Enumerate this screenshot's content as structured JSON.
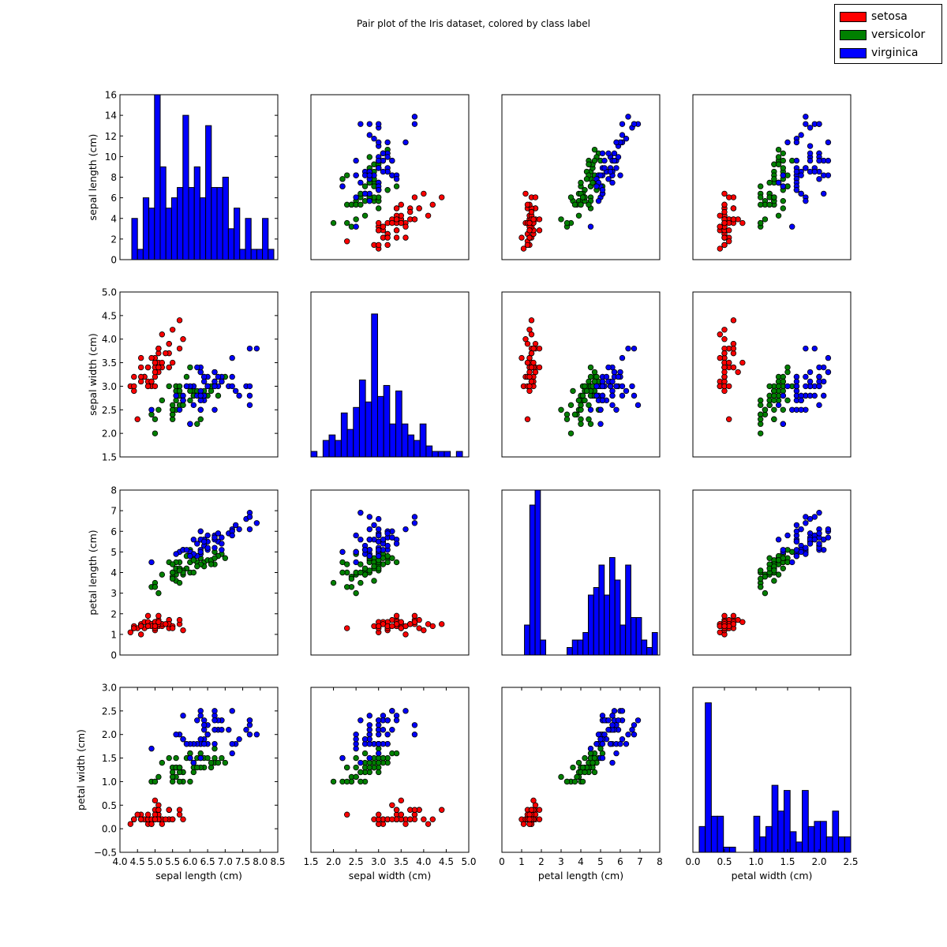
{
  "chart_data": {
    "type": "scatter",
    "title": "Pair plot of the Iris dataset, colored by class label",
    "legend_position": "top-right",
    "grid": false,
    "variables": [
      {
        "key": "sl",
        "label": "sepal length (cm)",
        "lim": [
          4.0,
          8.5
        ],
        "ticks": [
          "4.0",
          "4.5",
          "5.0",
          "5.5",
          "6.0",
          "6.5",
          "7.0",
          "7.5",
          "8.0",
          "8.5"
        ]
      },
      {
        "key": "sw",
        "label": "sepal width (cm)",
        "lim": [
          1.5,
          5.0
        ],
        "ticks": [
          "1.5",
          "2.0",
          "2.5",
          "3.0",
          "3.5",
          "4.0",
          "4.5",
          "5.0"
        ]
      },
      {
        "key": "pl",
        "label": "petal length (cm)",
        "lim": [
          0,
          8
        ],
        "ticks": [
          "0",
          "1",
          "2",
          "3",
          "4",
          "5",
          "6",
          "7",
          "8"
        ]
      },
      {
        "key": "pw",
        "label": "petal width (cm)",
        "lim": [
          -0.5,
          3.0
        ],
        "ticks": [
          "−0.5",
          "0.0",
          "0.5",
          "1.0",
          "1.5",
          "2.0",
          "2.5",
          "3.0"
        ]
      }
    ],
    "bottom_x_ticks": [
      [
        "4.0",
        "4.5",
        "5.0",
        "5.5",
        "6.0",
        "6.5",
        "7.0",
        "7.5",
        "8.0",
        "8.5"
      ],
      [
        "1.5",
        "2.0",
        "2.5",
        "3.0",
        "3.5",
        "4.0",
        "4.5",
        "5.0"
      ],
      [
        "0",
        "1",
        "2",
        "3",
        "4",
        "5",
        "6",
        "7",
        "8"
      ],
      [
        "0.0",
        "0.5",
        "1.0",
        "1.5",
        "2.0",
        "2.5"
      ]
    ],
    "bottom_x_lims": [
      [
        4.0,
        8.5
      ],
      [
        1.5,
        5.0
      ],
      [
        0,
        8
      ],
      [
        0,
        2.5
      ]
    ],
    "first_row_y_ticks": [
      "0",
      "2",
      "4",
      "6",
      "8",
      "10",
      "12",
      "14",
      "16"
    ],
    "first_row_y_lim": [
      0,
      16
    ],
    "first_row_scatter_y_lim": [
      4.0,
      8.5
    ],
    "histogram": {
      "bins": 25,
      "color": "#0000ff",
      "x_lims": [
        [
          4.0,
          8.0
        ],
        [
          2.0,
          4.5
        ],
        [
          0,
          7
        ],
        [
          0,
          2.5
        ]
      ],
      "y_lims": [
        [
          0,
          16
        ],
        [
          0,
          30
        ],
        [
          0,
          22
        ],
        [
          0,
          32
        ]
      ]
    },
    "classes": [
      {
        "name": "setosa",
        "color": "#ff0000",
        "rows": [
          [
            5.1,
            3.5,
            1.4,
            0.2
          ],
          [
            4.9,
            3.0,
            1.4,
            0.2
          ],
          [
            4.7,
            3.2,
            1.3,
            0.2
          ],
          [
            4.6,
            3.1,
            1.5,
            0.2
          ],
          [
            5.0,
            3.6,
            1.4,
            0.2
          ],
          [
            5.4,
            3.9,
            1.7,
            0.4
          ],
          [
            4.6,
            3.4,
            1.4,
            0.3
          ],
          [
            5.0,
            3.4,
            1.5,
            0.2
          ],
          [
            4.4,
            2.9,
            1.4,
            0.2
          ],
          [
            4.9,
            3.1,
            1.5,
            0.1
          ],
          [
            5.4,
            3.7,
            1.5,
            0.2
          ],
          [
            4.8,
            3.4,
            1.6,
            0.2
          ],
          [
            4.8,
            3.0,
            1.4,
            0.1
          ],
          [
            4.3,
            3.0,
            1.1,
            0.1
          ],
          [
            5.8,
            4.0,
            1.2,
            0.2
          ],
          [
            5.7,
            4.4,
            1.5,
            0.4
          ],
          [
            5.4,
            3.9,
            1.3,
            0.4
          ],
          [
            5.1,
            3.5,
            1.4,
            0.3
          ],
          [
            5.7,
            3.8,
            1.7,
            0.3
          ],
          [
            5.1,
            3.8,
            1.5,
            0.3
          ],
          [
            5.4,
            3.4,
            1.7,
            0.2
          ],
          [
            5.1,
            3.7,
            1.5,
            0.4
          ],
          [
            4.6,
            3.6,
            1.0,
            0.2
          ],
          [
            5.1,
            3.3,
            1.7,
            0.5
          ],
          [
            4.8,
            3.4,
            1.9,
            0.2
          ],
          [
            5.0,
            3.0,
            1.6,
            0.2
          ],
          [
            5.0,
            3.4,
            1.6,
            0.4
          ],
          [
            5.2,
            3.5,
            1.5,
            0.2
          ],
          [
            5.2,
            3.4,
            1.4,
            0.2
          ],
          [
            4.7,
            3.2,
            1.6,
            0.2
          ],
          [
            4.8,
            3.1,
            1.6,
            0.2
          ],
          [
            5.4,
            3.4,
            1.5,
            0.4
          ],
          [
            5.2,
            4.1,
            1.5,
            0.1
          ],
          [
            5.5,
            4.2,
            1.4,
            0.2
          ],
          [
            4.9,
            3.1,
            1.5,
            0.2
          ],
          [
            5.0,
            3.2,
            1.2,
            0.2
          ],
          [
            5.5,
            3.5,
            1.3,
            0.2
          ],
          [
            4.9,
            3.6,
            1.4,
            0.1
          ],
          [
            4.4,
            3.0,
            1.3,
            0.2
          ],
          [
            5.1,
            3.4,
            1.5,
            0.2
          ],
          [
            5.0,
            3.5,
            1.3,
            0.3
          ],
          [
            4.5,
            2.3,
            1.3,
            0.3
          ],
          [
            4.4,
            3.2,
            1.3,
            0.2
          ],
          [
            5.0,
            3.5,
            1.6,
            0.6
          ],
          [
            5.1,
            3.8,
            1.9,
            0.4
          ],
          [
            4.8,
            3.0,
            1.4,
            0.3
          ],
          [
            5.1,
            3.8,
            1.6,
            0.2
          ],
          [
            4.6,
            3.2,
            1.4,
            0.2
          ],
          [
            5.3,
            3.7,
            1.5,
            0.2
          ],
          [
            5.0,
            3.3,
            1.4,
            0.2
          ]
        ]
      },
      {
        "name": "versicolor",
        "color": "#008000",
        "rows": [
          [
            7.0,
            3.2,
            4.7,
            1.4
          ],
          [
            6.4,
            3.2,
            4.5,
            1.5
          ],
          [
            6.9,
            3.1,
            4.9,
            1.5
          ],
          [
            5.5,
            2.3,
            4.0,
            1.3
          ],
          [
            6.5,
            2.8,
            4.6,
            1.5
          ],
          [
            5.7,
            2.8,
            4.5,
            1.3
          ],
          [
            6.3,
            3.3,
            4.7,
            1.6
          ],
          [
            4.9,
            2.4,
            3.3,
            1.0
          ],
          [
            6.6,
            2.9,
            4.6,
            1.3
          ],
          [
            5.2,
            2.7,
            3.9,
            1.4
          ],
          [
            5.0,
            2.0,
            3.5,
            1.0
          ],
          [
            5.9,
            3.0,
            4.2,
            1.5
          ],
          [
            6.0,
            2.2,
            4.0,
            1.0
          ],
          [
            6.1,
            2.9,
            4.7,
            1.4
          ],
          [
            5.6,
            2.9,
            3.6,
            1.3
          ],
          [
            6.7,
            3.1,
            4.4,
            1.4
          ],
          [
            5.6,
            3.0,
            4.5,
            1.5
          ],
          [
            5.8,
            2.7,
            4.1,
            1.0
          ],
          [
            6.2,
            2.2,
            4.5,
            1.5
          ],
          [
            5.6,
            2.5,
            3.9,
            1.1
          ],
          [
            5.9,
            3.2,
            4.8,
            1.8
          ],
          [
            6.1,
            2.8,
            4.0,
            1.3
          ],
          [
            6.3,
            2.5,
            4.9,
            1.5
          ],
          [
            6.1,
            2.8,
            4.7,
            1.2
          ],
          [
            6.4,
            2.9,
            4.3,
            1.3
          ],
          [
            6.6,
            3.0,
            4.4,
            1.4
          ],
          [
            6.8,
            2.8,
            4.8,
            1.4
          ],
          [
            6.7,
            3.0,
            5.0,
            1.7
          ],
          [
            6.0,
            2.9,
            4.5,
            1.5
          ],
          [
            5.7,
            2.6,
            3.5,
            1.0
          ],
          [
            5.5,
            2.4,
            3.8,
            1.1
          ],
          [
            5.5,
            2.4,
            3.7,
            1.0
          ],
          [
            5.8,
            2.7,
            3.9,
            1.2
          ],
          [
            6.0,
            2.7,
            5.1,
            1.6
          ],
          [
            5.4,
            3.0,
            4.5,
            1.5
          ],
          [
            6.0,
            3.4,
            4.5,
            1.6
          ],
          [
            6.7,
            3.1,
            4.7,
            1.5
          ],
          [
            6.3,
            2.3,
            4.4,
            1.3
          ],
          [
            5.6,
            3.0,
            4.1,
            1.3
          ],
          [
            5.5,
            2.5,
            4.0,
            1.3
          ],
          [
            5.5,
            2.6,
            4.4,
            1.2
          ],
          [
            6.1,
            3.0,
            4.6,
            1.4
          ],
          [
            5.8,
            2.6,
            4.0,
            1.2
          ],
          [
            5.0,
            2.3,
            3.3,
            1.0
          ],
          [
            5.6,
            2.7,
            4.2,
            1.3
          ],
          [
            5.7,
            3.0,
            4.2,
            1.2
          ],
          [
            5.7,
            2.9,
            4.2,
            1.3
          ],
          [
            6.2,
            2.9,
            4.3,
            1.3
          ],
          [
            5.1,
            2.5,
            3.0,
            1.1
          ],
          [
            5.7,
            2.8,
            4.1,
            1.3
          ]
        ]
      },
      {
        "name": "virginica",
        "color": "#0000ff",
        "rows": [
          [
            6.3,
            3.3,
            6.0,
            2.5
          ],
          [
            5.8,
            2.7,
            5.1,
            1.9
          ],
          [
            7.1,
            3.0,
            5.9,
            2.1
          ],
          [
            6.3,
            2.9,
            5.6,
            1.8
          ],
          [
            6.5,
            3.0,
            5.8,
            2.2
          ],
          [
            7.6,
            3.0,
            6.6,
            2.1
          ],
          [
            4.9,
            2.5,
            4.5,
            1.7
          ],
          [
            7.3,
            2.9,
            6.3,
            1.8
          ],
          [
            6.7,
            2.5,
            5.8,
            1.8
          ],
          [
            7.2,
            3.6,
            6.1,
            2.5
          ],
          [
            6.5,
            3.2,
            5.1,
            2.0
          ],
          [
            6.4,
            2.7,
            5.3,
            1.9
          ],
          [
            6.8,
            3.0,
            5.5,
            2.1
          ],
          [
            5.7,
            2.5,
            5.0,
            2.0
          ],
          [
            5.8,
            2.8,
            5.1,
            2.4
          ],
          [
            6.4,
            3.2,
            5.3,
            2.3
          ],
          [
            6.5,
            3.0,
            5.5,
            1.8
          ],
          [
            7.7,
            3.8,
            6.7,
            2.2
          ],
          [
            7.7,
            2.6,
            6.9,
            2.3
          ],
          [
            6.0,
            2.2,
            5.0,
            1.5
          ],
          [
            6.9,
            3.2,
            5.7,
            2.3
          ],
          [
            5.6,
            2.8,
            4.9,
            2.0
          ],
          [
            7.7,
            2.8,
            6.7,
            2.0
          ],
          [
            6.3,
            2.7,
            4.9,
            1.8
          ],
          [
            6.7,
            3.3,
            5.7,
            2.1
          ],
          [
            7.2,
            3.2,
            6.0,
            1.8
          ],
          [
            6.2,
            2.8,
            4.8,
            1.8
          ],
          [
            6.1,
            3.0,
            4.9,
            1.8
          ],
          [
            6.4,
            2.8,
            5.6,
            2.1
          ],
          [
            7.2,
            3.0,
            5.8,
            1.6
          ],
          [
            7.4,
            2.8,
            6.1,
            1.9
          ],
          [
            7.9,
            3.8,
            6.4,
            2.0
          ],
          [
            6.4,
            2.8,
            5.6,
            2.2
          ],
          [
            6.3,
            2.8,
            5.1,
            1.5
          ],
          [
            6.1,
            2.6,
            5.6,
            1.4
          ],
          [
            7.7,
            3.0,
            6.1,
            2.3
          ],
          [
            6.3,
            3.4,
            5.6,
            2.4
          ],
          [
            6.4,
            3.1,
            5.5,
            1.8
          ],
          [
            6.0,
            3.0,
            4.8,
            1.8
          ],
          [
            6.9,
            3.1,
            5.4,
            2.1
          ],
          [
            6.7,
            3.1,
            5.6,
            2.4
          ],
          [
            6.9,
            3.1,
            5.1,
            2.3
          ],
          [
            5.8,
            2.7,
            5.1,
            1.9
          ],
          [
            6.8,
            3.2,
            5.9,
            2.3
          ],
          [
            6.7,
            3.3,
            5.7,
            2.5
          ],
          [
            6.7,
            3.0,
            5.2,
            2.3
          ],
          [
            6.3,
            2.5,
            5.0,
            1.9
          ],
          [
            6.5,
            3.0,
            5.2,
            2.0
          ],
          [
            6.2,
            3.4,
            5.4,
            2.3
          ],
          [
            5.9,
            3.0,
            5.1,
            1.8
          ]
        ]
      }
    ]
  }
}
